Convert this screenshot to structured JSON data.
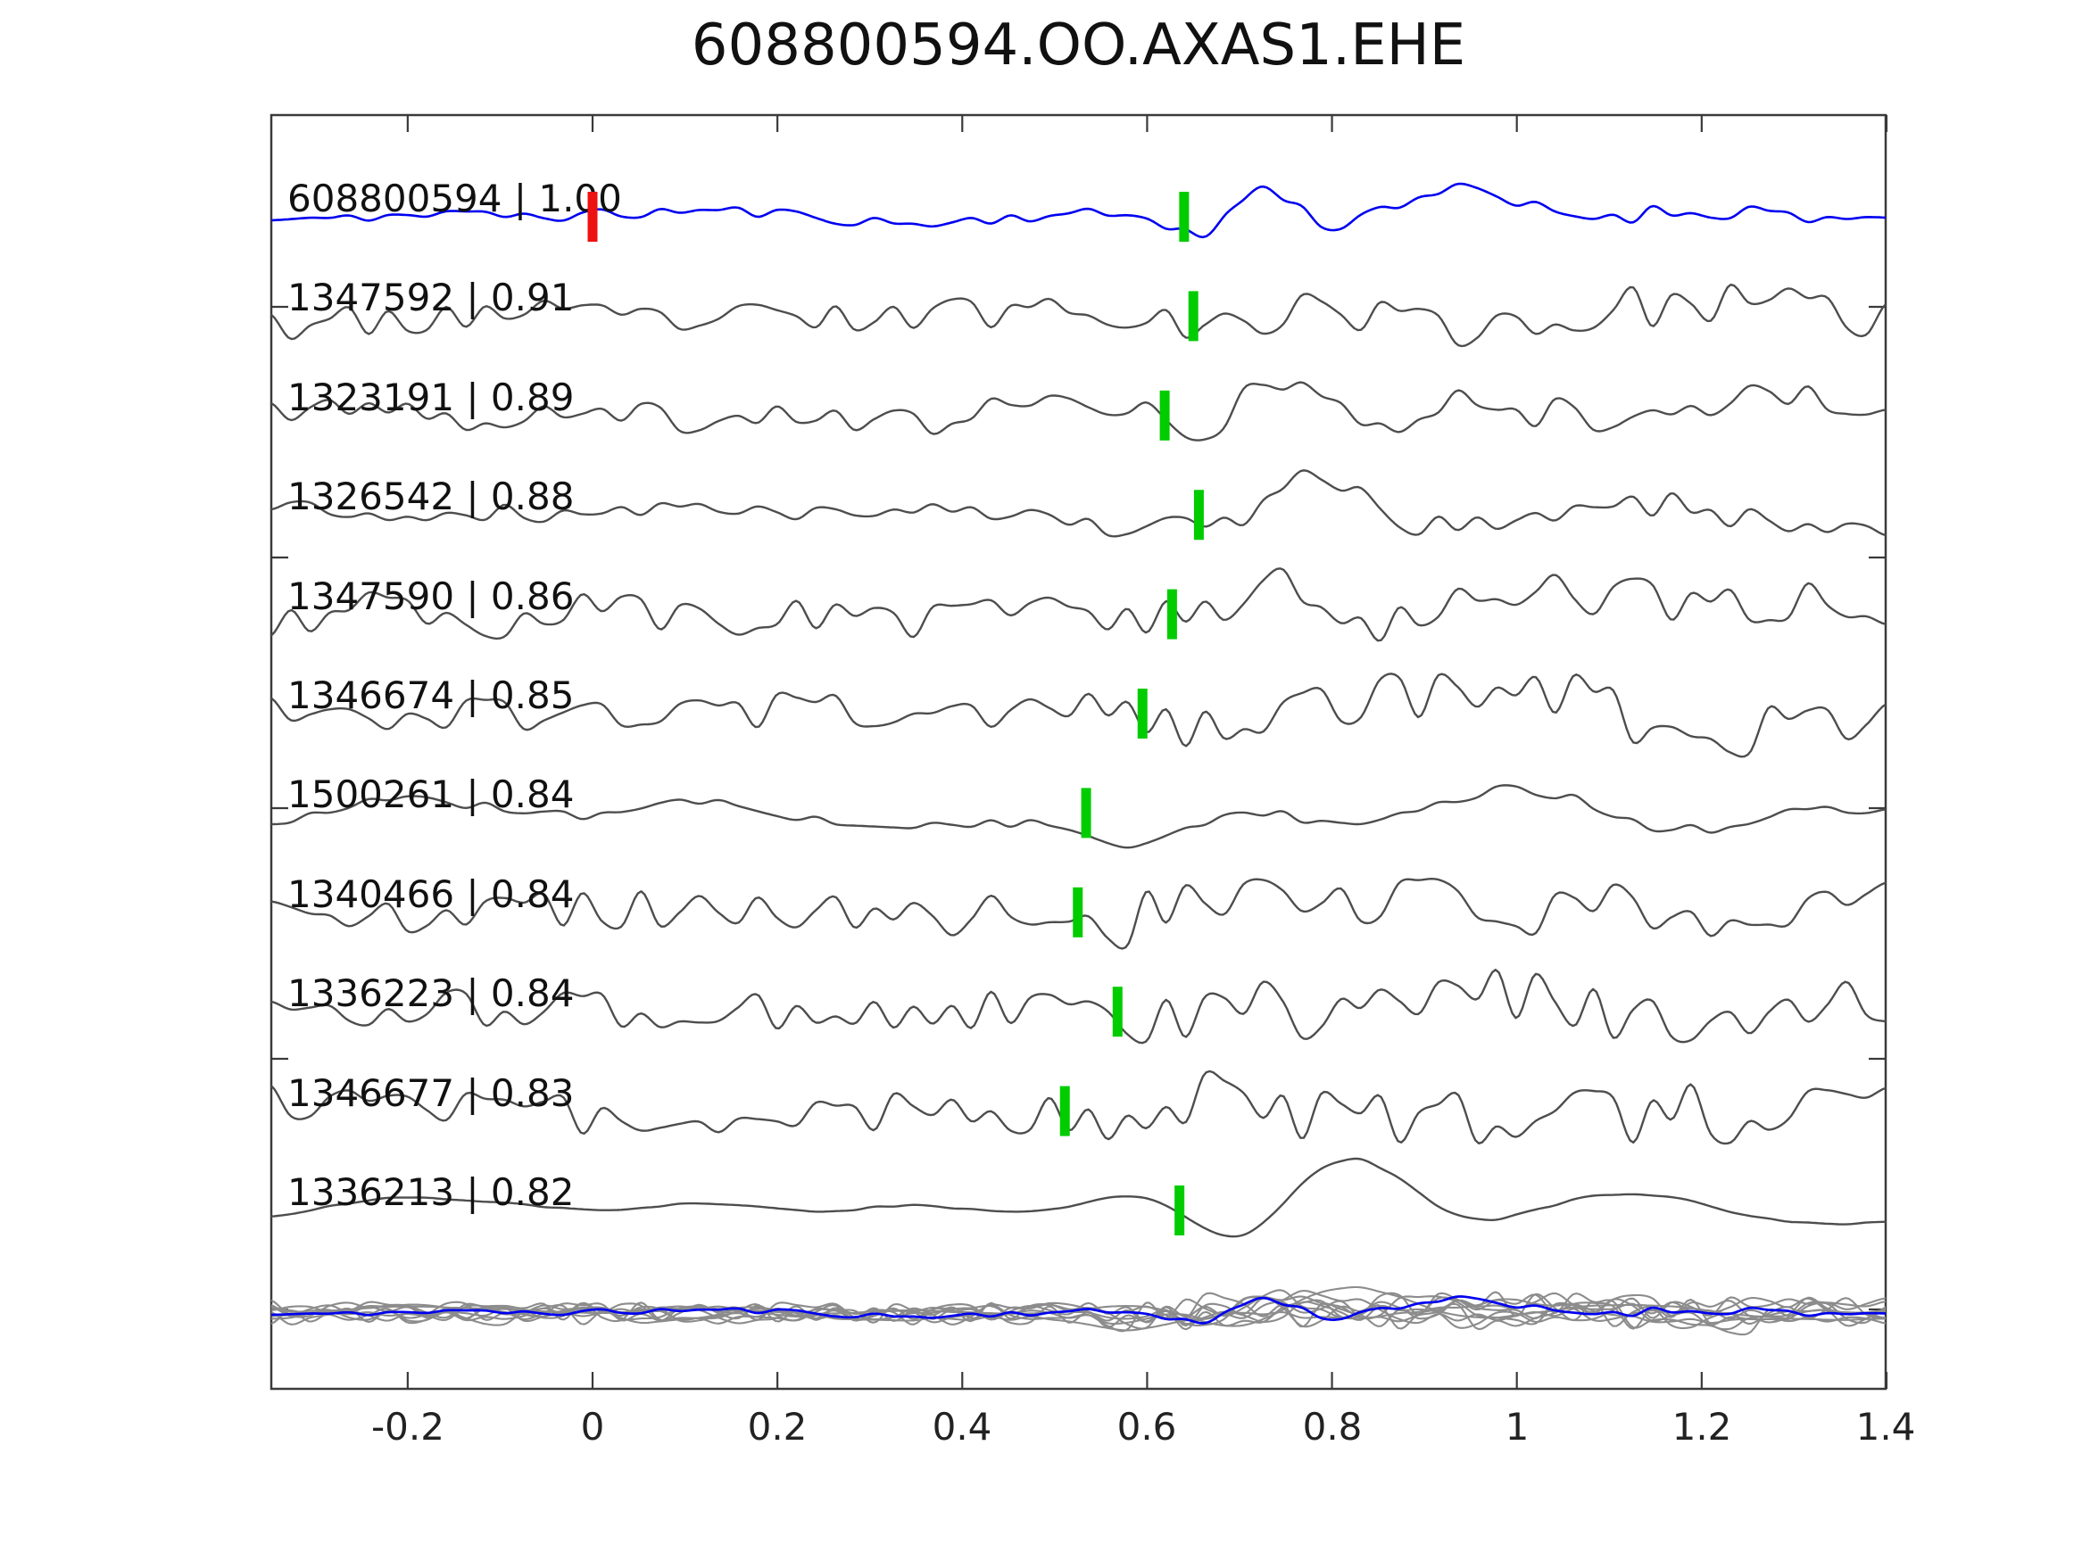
{
  "page": {
    "title_text": "608800594.OO.AXAS1.EHE"
  },
  "colors": {
    "reference_trace": "#0000f0",
    "match_trace": "#4d4d4d",
    "overlay_trace": "#8c8c8c",
    "overlay_reference": "#0000f0",
    "pick_marker": "#00cc00",
    "reference_pick_marker": "#ee1111",
    "axis": "#3a3a3a",
    "text": "#111111"
  },
  "chart_data": {
    "type": "line",
    "title": "608800594.OO.AXAS1.EHE",
    "xlabel": "",
    "ylabel": "",
    "x_axis": {
      "range": [
        -0.35,
        1.4
      ],
      "ticks": [
        -0.2,
        0,
        0.2,
        0.4,
        0.6,
        0.8,
        1,
        1.2,
        1.4
      ],
      "tick_labels": [
        "-0.2",
        "0",
        "0.2",
        "0.4",
        "0.6",
        "0.8",
        "1",
        "1.2",
        "1.4"
      ]
    },
    "y_axis": {
      "tick_labels": [],
      "note": "unlabeled offset ticks at trace-offset units 0, 2.5, 5, 7.5, 10"
    },
    "reference_trace": {
      "id": "608800594",
      "template_pick_time": 0.0
    },
    "traces": [
      {
        "id": "608800594",
        "correlation": "1.00",
        "label": "608800594 | 1.00",
        "pick_time": 0.64,
        "is_reference": true
      },
      {
        "id": "1347592",
        "correlation": "0.91",
        "label": "1347592 | 0.91",
        "pick_time": 0.65,
        "is_reference": false
      },
      {
        "id": "1323191",
        "correlation": "0.89",
        "label": "1323191 | 0.89",
        "pick_time": 0.619,
        "is_reference": false
      },
      {
        "id": "1326542",
        "correlation": "0.88",
        "label": "1326542 | 0.88",
        "pick_time": 0.656,
        "is_reference": false
      },
      {
        "id": "1347590",
        "correlation": "0.86",
        "label": "1347590 | 0.86",
        "pick_time": 0.627,
        "is_reference": false
      },
      {
        "id": "1346674",
        "correlation": "0.85",
        "label": "1346674 | 0.85",
        "pick_time": 0.595,
        "is_reference": false
      },
      {
        "id": "1500261",
        "correlation": "0.84",
        "label": "1500261 | 0.84",
        "pick_time": 0.534,
        "is_reference": false
      },
      {
        "id": "1340466",
        "correlation": "0.84",
        "label": "1340466 | 0.84",
        "pick_time": 0.525,
        "is_reference": false
      },
      {
        "id": "1336223",
        "correlation": "0.84",
        "label": "1336223 | 0.84",
        "pick_time": 0.568,
        "is_reference": false
      },
      {
        "id": "1346677",
        "correlation": "0.83",
        "label": "1346677 | 0.83",
        "pick_time": 0.511,
        "is_reference": false
      },
      {
        "id": "1336213",
        "correlation": "0.82",
        "label": "1336213 | 0.82",
        "pick_time": 0.635,
        "is_reference": false
      }
    ],
    "overlay_row": {
      "description": "all matched traces overlaid in gray with reference trace in blue",
      "includes_reference": true
    }
  },
  "waveform_synthesis": {
    "note": "stochastic recreation of seismogram wiggles; per-trace generator parameters",
    "traces": [
      {
        "seed": 11,
        "amp": 13,
        "hf": 0.5,
        "post": 0.5,
        "event_amp": 55,
        "shape": "ref"
      },
      {
        "seed": 23,
        "amp": 26,
        "hf": 0.75,
        "post": 0.25,
        "event_amp": 24,
        "shape": "A"
      },
      {
        "seed": 37,
        "amp": 24,
        "hf": 0.6,
        "post": 0.3,
        "event_amp": 60,
        "shape": "A"
      },
      {
        "seed": 41,
        "amp": 21,
        "hf": 0.5,
        "post": 0.35,
        "event_amp": 60,
        "shape": "A2"
      },
      {
        "seed": 53,
        "amp": 27,
        "hf": 0.7,
        "post": 0.35,
        "event_amp": 50,
        "shape": "A"
      },
      {
        "seed": 67,
        "amp": 26,
        "hf": 0.72,
        "post": 0.45,
        "event_amp": 45,
        "shape": "B"
      },
      {
        "seed": 79,
        "amp": 14,
        "hf": 0.3,
        "post": 0.55,
        "event_amp": 45,
        "shape": "C"
      },
      {
        "seed": 83,
        "amp": 27,
        "hf": 0.78,
        "post": 0.5,
        "event_amp": 30,
        "shape": "A"
      },
      {
        "seed": 97,
        "amp": 28,
        "hf": 0.78,
        "post": 0.55,
        "event_amp": 28,
        "shape": "A"
      },
      {
        "seed": 109,
        "amp": 29,
        "hf": 0.8,
        "post": 0.5,
        "event_amp": 32,
        "shape": "A"
      },
      {
        "seed": 127,
        "amp": 10,
        "hf": 0.12,
        "post": 0.35,
        "event_amp": 62,
        "shape": "D"
      }
    ],
    "shapes": {
      "ref": [
        [
          -0.85,
          0.03,
          0.03
        ],
        [
          1.0,
          0.072,
          0.04
        ],
        [
          -0.45,
          0.15,
          0.06
        ],
        [
          0.4,
          0.25,
          0.095
        ]
      ],
      "A": [
        [
          -0.75,
          0.046,
          0.038
        ],
        [
          1.0,
          0.105,
          0.058
        ],
        [
          -0.55,
          0.21,
          0.08
        ],
        [
          0.3,
          0.34,
          0.11
        ]
      ],
      "A2": [
        [
          -0.8,
          0.046,
          0.04
        ],
        [
          1.0,
          0.105,
          0.06
        ],
        [
          -0.6,
          0.21,
          0.085
        ],
        [
          0.45,
          0.33,
          0.11
        ],
        [
          -0.25,
          0.47,
          0.13
        ]
      ],
      "B": [
        [
          -0.45,
          0.05,
          0.04
        ],
        [
          0.5,
          0.14,
          0.06
        ],
        [
          -0.4,
          0.24,
          0.08
        ],
        [
          1.0,
          0.36,
          0.1
        ],
        [
          -0.35,
          0.52,
          0.13
        ]
      ],
      "C": [
        [
          -0.7,
          0.06,
          0.05
        ],
        [
          0.45,
          0.16,
          0.07
        ],
        [
          -0.5,
          0.28,
          0.1
        ],
        [
          1.0,
          0.43,
          0.13
        ],
        [
          -0.45,
          0.66,
          0.16
        ]
      ],
      "D": [
        [
          0.3,
          -0.05,
          0.05
        ],
        [
          -1.0,
          0.068,
          0.052
        ],
        [
          1.05,
          0.185,
          0.075
        ],
        [
          -0.55,
          0.33,
          0.1
        ],
        [
          0.45,
          0.48,
          0.12
        ],
        [
          -0.25,
          0.66,
          0.15
        ]
      ]
    }
  }
}
